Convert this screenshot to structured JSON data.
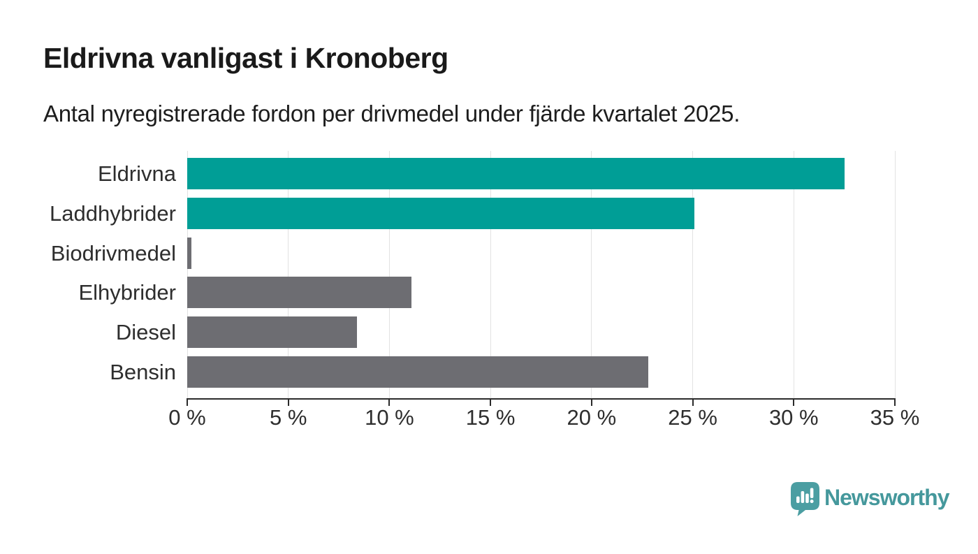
{
  "header": {
    "title": "Eldrivna vanligast i Kronoberg",
    "subtitle": "Antal nyregistrerade fordon per drivmedel under fjärde kvartalet 2025."
  },
  "chart_data": {
    "type": "bar",
    "orientation": "horizontal",
    "title": "Eldrivna vanligast i Kronoberg",
    "subtitle": "Antal nyregistrerade fordon per drivmedel under fjärde kvartalet 2025.",
    "categories": [
      "Eldrivna",
      "Laddhybrider",
      "Biodrivmedel",
      "Elhybrider",
      "Diesel",
      "Bensin"
    ],
    "values": [
      32.5,
      25.1,
      0.2,
      11.1,
      8.4,
      22.8
    ],
    "unit": "%",
    "bar_colors": [
      "#009e96",
      "#009e96",
      "#6d6d72",
      "#6d6d72",
      "#6d6d72",
      "#6d6d72"
    ],
    "highlight_color": "#009e96",
    "base_color": "#6d6d72",
    "xlim": [
      0,
      35
    ],
    "x_ticks": [
      0,
      5,
      10,
      15,
      20,
      25,
      30,
      35
    ],
    "x_tick_labels": [
      "0 %",
      "5 %",
      "10 %",
      "15 %",
      "20 %",
      "25 %",
      "30 %",
      "35 %"
    ],
    "grid": true,
    "gridline_color": "#e2e2e2",
    "axis_color": "#2b2b2b",
    "legend": "none"
  },
  "footer": {
    "brand": "Newsworthy",
    "brand_color": "#45989c",
    "logo_icon": "newsworthy-bar-chart-bubble-icon"
  }
}
